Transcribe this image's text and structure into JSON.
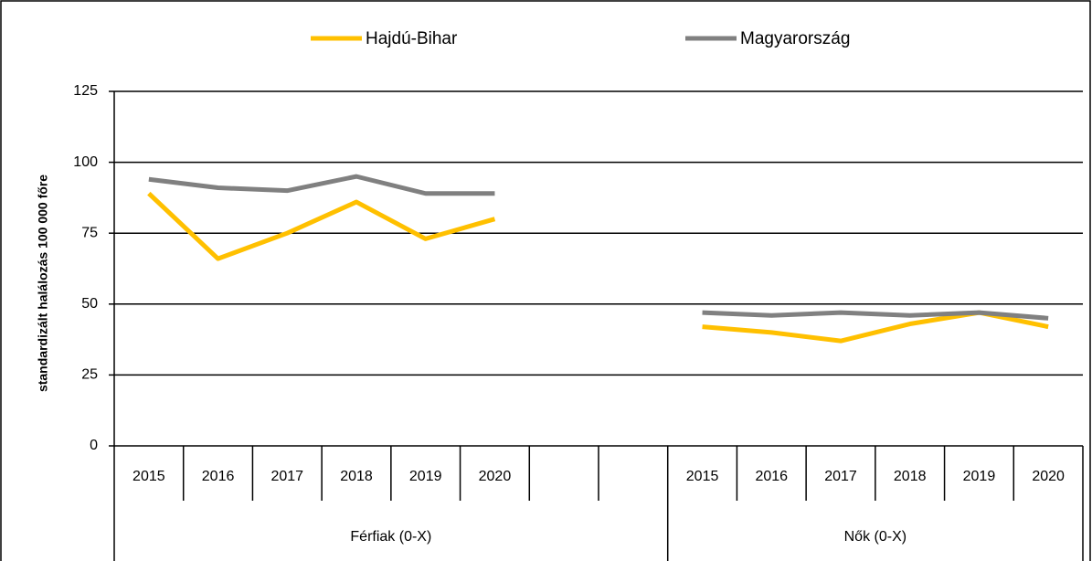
{
  "chart_data": {
    "type": "line",
    "y_label": "standardizált halálozás 100 000 főre",
    "groups": [
      {
        "name": "Férfiak (0-X)",
        "categories": [
          "2015",
          "2016",
          "2017",
          "2018",
          "2019",
          "2020",
          null,
          null
        ]
      },
      {
        "name": "Nők (0-X)",
        "categories": [
          "2015",
          "2016",
          "2017",
          "2018",
          "2019",
          "2020"
        ]
      }
    ],
    "series": [
      {
        "name": "Hajdú-Bihar",
        "color": "#ffc000",
        "values": [
          89,
          66,
          75,
          86,
          73,
          80,
          null,
          null,
          42,
          40,
          37,
          43,
          47,
          42
        ]
      },
      {
        "name": "Magyarország",
        "color": "#808080",
        "values": [
          94,
          91,
          90,
          95,
          89,
          89,
          null,
          null,
          47,
          46,
          47,
          46,
          47,
          45
        ]
      }
    ],
    "ylim": [
      0,
      125
    ],
    "yticks": [
      0,
      25,
      50,
      75,
      100,
      125
    ],
    "grid": true,
    "legend": "top"
  }
}
